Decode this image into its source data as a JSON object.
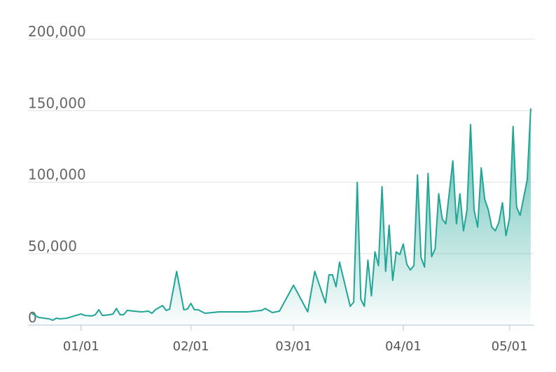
{
  "chart_data": {
    "type": "area",
    "color": "#20a596",
    "x": [
      "12/18",
      "12/20",
      "12/23",
      "12/24",
      "12/25",
      "12/26",
      "12/28",
      "12/30",
      "01/01",
      "01/02",
      "01/04",
      "01/05",
      "01/06",
      "01/07",
      "01/09",
      "01/10",
      "01/11",
      "01/12",
      "01/13",
      "01/14",
      "01/16",
      "01/18",
      "01/20",
      "01/21",
      "01/22",
      "01/24",
      "01/25",
      "01/26",
      "01/28",
      "01/30",
      "01/31",
      "02/01",
      "02/02",
      "02/03",
      "02/05",
      "02/07",
      "02/09",
      "02/17",
      "02/21",
      "02/22",
      "02/24",
      "02/26",
      "03/01",
      "03/05",
      "03/07",
      "03/10",
      "03/11",
      "03/12",
      "03/13",
      "03/14",
      "03/17",
      "03/18",
      "03/19",
      "03/20",
      "03/21",
      "03/22",
      "03/23",
      "03/24",
      "03/25",
      "03/26",
      "03/27",
      "03/28",
      "03/29",
      "03/30",
      "03/31",
      "04/01",
      "04/02",
      "04/03",
      "04/04",
      "04/05",
      "04/06",
      "04/07",
      "04/08",
      "04/09",
      "04/10",
      "04/11",
      "04/12",
      "04/13",
      "04/14",
      "04/15",
      "04/16",
      "04/17",
      "04/18",
      "04/19",
      "04/20",
      "04/21",
      "04/22",
      "04/23",
      "04/24",
      "04/25",
      "04/26",
      "04/27",
      "04/28",
      "04/29",
      "04/30",
      "05/01",
      "05/02",
      "05/03",
      "05/04",
      "05/06",
      "05/07"
    ],
    "values": [
      8300,
      5400,
      4400,
      3400,
      4900,
      4400,
      4900,
      6400,
      7800,
      6800,
      6400,
      7300,
      10800,
      6800,
      7300,
      7800,
      11700,
      7300,
      7300,
      10300,
      9800,
      9300,
      9800,
      8300,
      10800,
      13700,
      10300,
      11200,
      37600,
      10800,
      11200,
      15200,
      10800,
      10800,
      8300,
      8800,
      9300,
      9300,
      10300,
      11700,
      8800,
      9800,
      27900,
      9300,
      37600,
      15600,
      35200,
      35200,
      26900,
      44000,
      13200,
      16100,
      99800,
      18100,
      13200,
      45500,
      20500,
      51300,
      41600,
      96800,
      37600,
      69900,
      31300,
      51300,
      49400,
      56700,
      42500,
      38600,
      41600,
      105100,
      47400,
      40600,
      106100,
      47900,
      53300,
      91900,
      74300,
      70900,
      92900,
      114900,
      70900,
      91900,
      66000,
      80700,
      140300,
      80700,
      68500,
      110000,
      88000,
      80700,
      68500,
      66000,
      71900,
      85600,
      62600,
      74800,
      138900,
      82600,
      76800,
      101700,
      151600
    ],
    "xlim": [
      "12/17",
      "05/08"
    ],
    "xticks": [
      "01/01",
      "02/01",
      "03/01",
      "04/01",
      "05/01"
    ],
    "ylim": [
      0,
      200000
    ],
    "yticks": [
      0,
      {
        "value": 50000,
        "label": "50,000"
      },
      {
        "value": 100000,
        "label": "100,000"
      },
      {
        "value": 150000,
        "label": "150,000"
      },
      {
        "value": 200000,
        "label": "200,000"
      }
    ],
    "grid": true
  }
}
